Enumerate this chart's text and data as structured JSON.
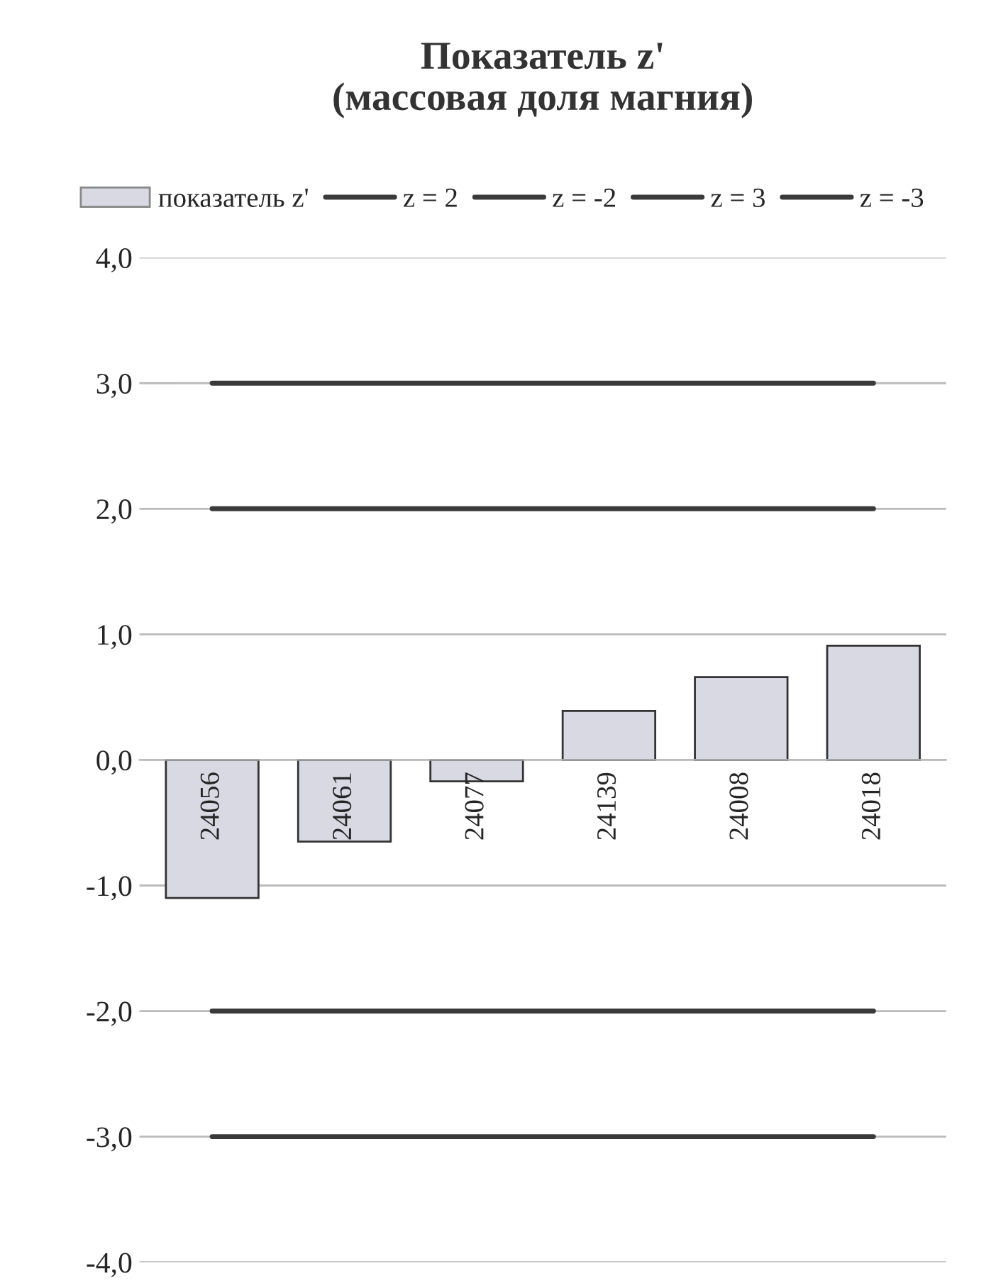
{
  "chart_data": {
    "type": "bar",
    "title": "Показатель z'\n(массовая доля магния)",
    "categories": [
      "24056",
      "24061",
      "24077",
      "24139",
      "24008",
      "24018"
    ],
    "series": [
      {
        "name": "показатель z'",
        "color": "#d9d9e4",
        "values": [
          -1.1,
          -0.65,
          -0.17,
          0.39,
          0.66,
          0.91
        ]
      },
      {
        "name": "z = 2",
        "type": "line",
        "color": "#3a3a3a",
        "values": [
          2,
          2,
          2,
          2,
          2,
          2
        ]
      },
      {
        "name": "z = -2",
        "type": "line",
        "color": "#3a3a3a",
        "values": [
          -2,
          -2,
          -2,
          -2,
          -2,
          -2
        ]
      },
      {
        "name": "z = 3",
        "type": "line",
        "color": "#3a3a3a",
        "values": [
          3,
          3,
          3,
          3,
          3,
          3
        ]
      },
      {
        "name": "z = -3",
        "type": "line",
        "color": "#3a3a3a",
        "values": [
          -3,
          -3,
          -3,
          -3,
          -3,
          -3
        ]
      }
    ],
    "ylim": [
      -4,
      4
    ],
    "yticks": [
      {
        "value": 4,
        "label": "4,0"
      },
      {
        "value": 3,
        "label": "3,0"
      },
      {
        "value": 2,
        "label": "2,0"
      },
      {
        "value": 1,
        "label": "1,0"
      },
      {
        "value": 0,
        "label": "0,0"
      },
      {
        "value": -1,
        "label": "-1,0"
      },
      {
        "value": -2,
        "label": "-2,0"
      },
      {
        "value": -3,
        "label": "-3,0"
      },
      {
        "value": -4,
        "label": "-4,0"
      }
    ],
    "grid": "y",
    "legend": "top",
    "marker": "none",
    "line_style": "solid"
  }
}
